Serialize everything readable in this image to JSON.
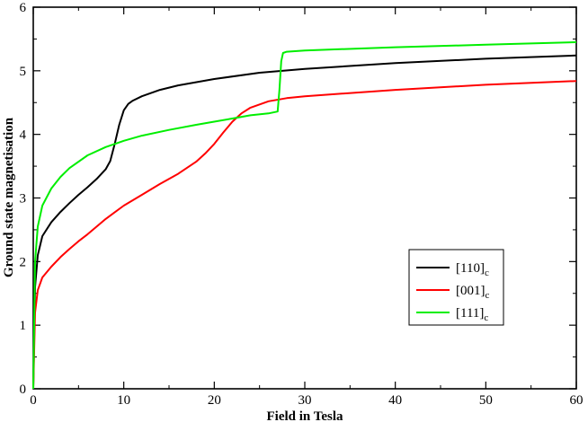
{
  "chart_data": {
    "type": "line",
    "title": "",
    "xlabel": "Field in Tesla",
    "ylabel": "Ground state magnetisation",
    "xlim": [
      0,
      60
    ],
    "ylim": [
      0,
      6
    ],
    "x_ticks": [
      0,
      10,
      20,
      30,
      40,
      50,
      60
    ],
    "y_ticks": [
      0,
      1,
      2,
      3,
      4,
      5,
      6
    ],
    "grid": false,
    "legend_position": "bottom-right",
    "series": [
      {
        "name": "[110]",
        "name_subscript": "c",
        "color": "#000000",
        "x": [
          0,
          0.2,
          0.5,
          1,
          2,
          3,
          4,
          5,
          6,
          7,
          8,
          8.5,
          9,
          9.5,
          10,
          10.5,
          11,
          12,
          14,
          16,
          20,
          25,
          30,
          40,
          50,
          60
        ],
        "y": [
          0,
          1.6,
          2.1,
          2.4,
          2.62,
          2.78,
          2.92,
          3.05,
          3.17,
          3.3,
          3.45,
          3.58,
          3.85,
          4.15,
          4.38,
          4.48,
          4.53,
          4.6,
          4.7,
          4.77,
          4.87,
          4.97,
          5.03,
          5.12,
          5.19,
          5.24
        ]
      },
      {
        "name": "[001]",
        "name_subscript": "c",
        "color": "#ff0000",
        "x": [
          0,
          0.2,
          0.5,
          1,
          2,
          3,
          4,
          5,
          6,
          8,
          10,
          12,
          14,
          16,
          18,
          19,
          20,
          21,
          22,
          23,
          24,
          26,
          28,
          30,
          40,
          50,
          60
        ],
        "y": [
          0,
          1.2,
          1.55,
          1.75,
          1.92,
          2.07,
          2.2,
          2.32,
          2.43,
          2.67,
          2.88,
          3.05,
          3.22,
          3.38,
          3.57,
          3.7,
          3.85,
          4.03,
          4.2,
          4.33,
          4.42,
          4.52,
          4.57,
          4.6,
          4.7,
          4.78,
          4.84
        ]
      },
      {
        "name": "[111]",
        "name_subscript": "c",
        "color": "#00ee00",
        "x": [
          0,
          0.2,
          0.5,
          1,
          2,
          3,
          4,
          6,
          8,
          10,
          12,
          15,
          18,
          20,
          22,
          24,
          26,
          27,
          27.2,
          27.4,
          27.6,
          28,
          30,
          40,
          50,
          60
        ],
        "y": [
          0,
          2.0,
          2.55,
          2.88,
          3.15,
          3.33,
          3.47,
          3.67,
          3.8,
          3.9,
          3.98,
          4.07,
          4.15,
          4.2,
          4.25,
          4.3,
          4.33,
          4.36,
          4.7,
          5.15,
          5.28,
          5.3,
          5.32,
          5.37,
          5.41,
          5.45
        ]
      }
    ]
  }
}
